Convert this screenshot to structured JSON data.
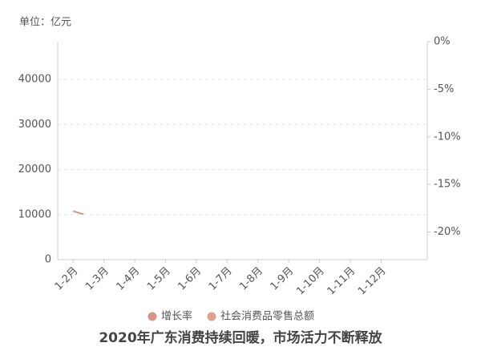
{
  "chart_data": {
    "type": "line",
    "title": "2020年广东消费持续回暖，市场活力不断释放",
    "unit_label": "单位：亿元",
    "categories": [
      "1-2月",
      "1-3月",
      "1-4月",
      "1-5月",
      "1-6月",
      "1-7月",
      "1-8月",
      "1-9月",
      "1-10月",
      "1-11月",
      "1-12月"
    ],
    "series": [
      {
        "name": "增长率",
        "color": "#d4968a",
        "axis": "y2",
        "values": [
          -17.8,
          null,
          null,
          null,
          null,
          null,
          null,
          null,
          null,
          null,
          null
        ]
      },
      {
        "name": "社会消费品零售总额",
        "color": "#dca08f",
        "values": [
          null,
          null,
          null,
          null,
          null,
          null,
          null,
          null,
          null,
          null,
          null
        ]
      }
    ],
    "ylim": [
      0,
      48360
    ],
    "yticks": [
      0,
      10000,
      20000,
      30000,
      40000
    ],
    "y2lim": [
      -22.9,
      0
    ],
    "y2ticks": [
      {
        "value": 0,
        "label": "0%"
      },
      {
        "value": -5,
        "label": "-5%"
      },
      {
        "value": -10,
        "label": "-10%"
      },
      {
        "value": -15,
        "label": "-15%"
      },
      {
        "value": -20,
        "label": "-20%"
      }
    ],
    "grid": true
  }
}
